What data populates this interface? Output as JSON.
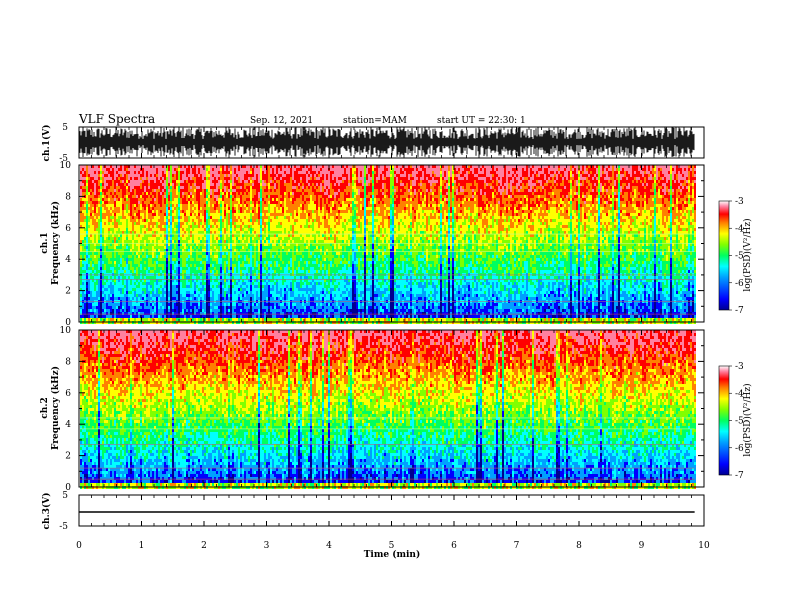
{
  "header": {
    "title": "VLF Spectra",
    "date": "Sep. 12, 2021",
    "station": "station=MAM",
    "start": "start UT =  22:30: 1"
  },
  "chart_data": [
    {
      "type": "line",
      "panel": "ch1-waveform",
      "ylabel": "ch.1(V)",
      "ylim": [
        -5,
        5
      ],
      "yticks": [
        5,
        -5
      ],
      "xlim": [
        0,
        10
      ]
    },
    {
      "type": "heatmap",
      "panel": "ch1-spectrogram",
      "ylabel": "ch.1\nFrequency (kHz)",
      "ylabel_top": "ch.1",
      "ylabel_bottom": "Frequency (kHz)",
      "ylim": [
        0,
        10
      ],
      "yticks": [
        0,
        2,
        4,
        6,
        8,
        10
      ],
      "xlim": [
        0,
        10
      ],
      "data_end_min": 9.85
    },
    {
      "type": "heatmap",
      "panel": "ch2-spectrogram",
      "ylabel_top": "ch.2",
      "ylabel_bottom": "Frequency (kHz)",
      "ylim": [
        0,
        10
      ],
      "yticks": [
        0,
        2,
        4,
        6,
        8,
        10
      ],
      "xlim": [
        0,
        10
      ],
      "data_end_min": 9.85
    },
    {
      "type": "line",
      "panel": "ch3-waveform",
      "ylabel": "ch.3(V)",
      "ylim": [
        -5,
        5
      ],
      "yticks": [
        5,
        0,
        -5
      ],
      "ytick_labels": [
        "5",
        "",
        "-5"
      ],
      "series": [
        {
          "values": [
            -0.5,
            -0.5
          ]
        }
      ],
      "x": [
        0,
        9.85
      ],
      "xlim": [
        0,
        10
      ],
      "xticks": [
        0,
        1,
        2,
        3,
        4,
        5,
        6,
        7,
        8,
        9,
        10
      ],
      "xlabel": "Time (min)"
    }
  ],
  "colorbars": [
    {
      "label": "log(PSD)(V²/Hz)",
      "ticks": [
        -3,
        -4,
        -5,
        -6,
        -7
      ],
      "range": [
        -7,
        -3
      ]
    },
    {
      "label": "log(PSD)(V²/Hz)",
      "ticks": [
        -3,
        -4,
        -5,
        -6,
        -7
      ],
      "range": [
        -7,
        -3
      ]
    }
  ],
  "colors": {
    "jet": [
      "#000090",
      "#0000ff",
      "#00a0ff",
      "#00ffff",
      "#00ff60",
      "#80ff00",
      "#ffff00",
      "#ff8000",
      "#ff0000",
      "#ff80a0",
      "#ffffff"
    ],
    "axis": "#000000"
  }
}
